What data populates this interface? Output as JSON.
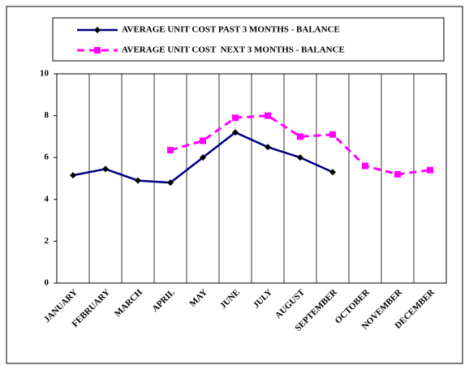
{
  "chart_data": {
    "type": "line",
    "categories": [
      "JANUARY",
      "FEBRUARY",
      "MARCH",
      "APRIL",
      "MAY",
      "JUNE",
      "JULY",
      "AUGUST",
      "SEPTEMBER",
      "OCTOBER",
      "NOVEMBER",
      "DECEMBER"
    ],
    "series": [
      {
        "name": "AVERAGE UNIT COST PAST 3 MONTHS - BALANCE",
        "color": "#000080",
        "marker": "diamond",
        "dashed": false,
        "values": [
          5.15,
          5.45,
          4.9,
          4.8,
          6.0,
          7.2,
          6.5,
          6.0,
          5.3,
          null,
          null,
          null
        ]
      },
      {
        "name": "AVERAGE UNIT COST  NEXT 3 MONTHS - BALANCE",
        "color": "#ff00ff",
        "marker": "square",
        "dashed": true,
        "values": [
          null,
          null,
          null,
          6.35,
          6.8,
          7.9,
          8.0,
          7.0,
          7.1,
          5.6,
          5.2,
          5.4
        ]
      }
    ],
    "ylim": [
      0,
      10
    ],
    "yticks": [
      0,
      2,
      4,
      6,
      8,
      10
    ]
  }
}
